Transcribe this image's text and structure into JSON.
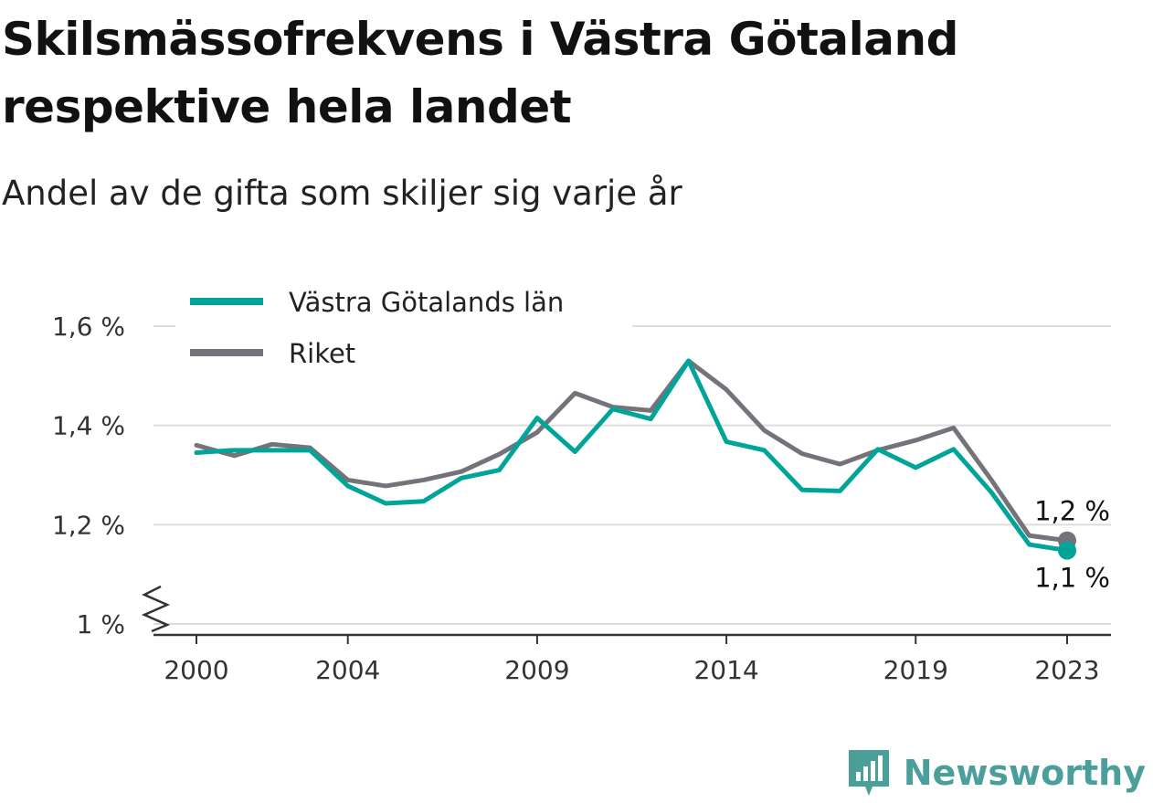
{
  "title": "Skilsmässofrekvens i Västra Götaland respektive hela landet",
  "subtitle": "Andel av de gifta som skiljer sig varje år",
  "brand": {
    "name": "Newsworthy",
    "icon": "bar-chart-badge-icon",
    "color": "#4a9f9a"
  },
  "chart_data": {
    "type": "line",
    "x": [
      2000,
      2001,
      2002,
      2003,
      2004,
      2005,
      2006,
      2007,
      2008,
      2009,
      2010,
      2011,
      2012,
      2013,
      2014,
      2015,
      2016,
      2017,
      2018,
      2019,
      2020,
      2021,
      2022,
      2023
    ],
    "series": [
      {
        "name": "Västra Götalands län",
        "color": "#00a499",
        "values": [
          1.345,
          1.35,
          1.35,
          1.35,
          1.278,
          1.243,
          1.247,
          1.294,
          1.31,
          1.415,
          1.347,
          1.433,
          1.413,
          1.53,
          1.367,
          1.35,
          1.27,
          1.268,
          1.352,
          1.315,
          1.352,
          1.265,
          1.16,
          1.148
        ]
      },
      {
        "name": "Riket",
        "color": "#74737a",
        "values": [
          1.36,
          1.339,
          1.362,
          1.355,
          1.29,
          1.278,
          1.29,
          1.307,
          1.342,
          1.386,
          1.465,
          1.437,
          1.43,
          1.53,
          1.472,
          1.39,
          1.343,
          1.322,
          1.35,
          1.37,
          1.395,
          1.29,
          1.178,
          1.168
        ]
      }
    ],
    "xticks": [
      2000,
      2004,
      2009,
      2014,
      2019,
      2023
    ],
    "xtick_labels": [
      "2000",
      "2004",
      "2009",
      "2014",
      "2019",
      "2023"
    ],
    "yticks": [
      1.0,
      1.2,
      1.4,
      1.6
    ],
    "ytick_labels": [
      "1 %",
      "1,2 %",
      "1,4 %",
      "1,6 %"
    ],
    "ylim": [
      1.0,
      1.6
    ],
    "xlim": [
      2000,
      2023
    ],
    "end_labels": {
      "Riket": "1,2 %",
      "Västra Götalands län": "1,1 %"
    },
    "legend": {
      "position": "top-left",
      "entries": [
        "Västra Götalands län",
        "Riket"
      ]
    },
    "grid": true,
    "axis_break": true
  }
}
